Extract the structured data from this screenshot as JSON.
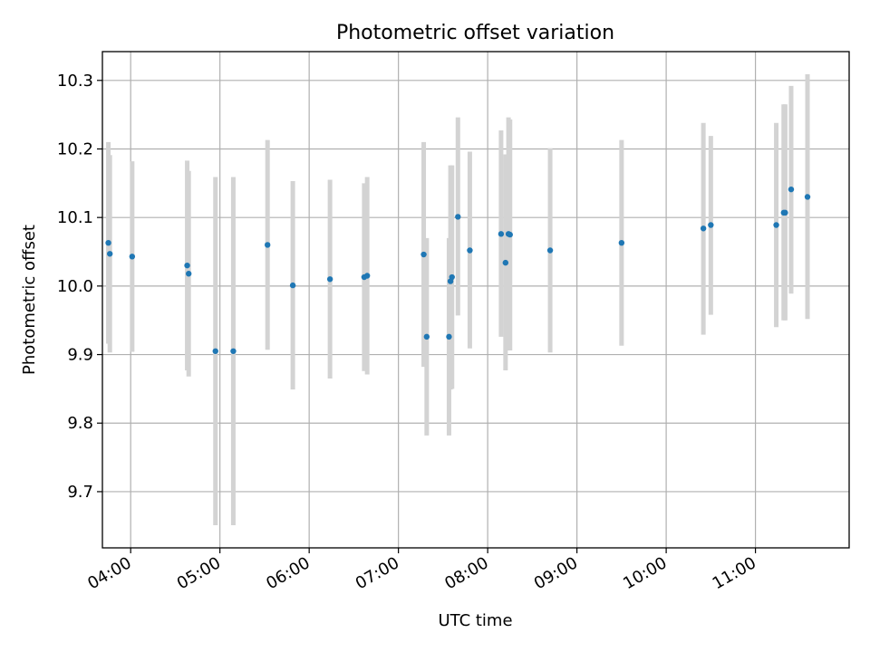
{
  "chart_data": {
    "type": "scatter",
    "title": "Photometric offset variation",
    "xlabel": "UTC time",
    "ylabel": "Photometric offset",
    "x_axis_type": "time",
    "xlim": [
      "03:41",
      "12:03"
    ],
    "ylim": [
      9.618,
      10.342
    ],
    "x_ticks": [
      "04:00",
      "05:00",
      "06:00",
      "07:00",
      "08:00",
      "09:00",
      "10:00",
      "11:00"
    ],
    "y_ticks": [
      9.7,
      9.8,
      9.9,
      10.0,
      10.1,
      10.2,
      10.3
    ],
    "y_tick_labels": [
      "9.7",
      "9.8",
      "9.9",
      "10.0",
      "10.1",
      "10.2",
      "10.3"
    ],
    "grid": true,
    "x_tick_rotation": "30 degrees",
    "marker_color": "#1f77b4",
    "errorbar_color": "#d3d3d3",
    "points": [
      {
        "x": "03:45",
        "y": 10.063,
        "ymin": 9.916,
        "ymax": 10.21
      },
      {
        "x": "03:46",
        "y": 10.047,
        "ymin": 9.903,
        "ymax": 10.191
      },
      {
        "x": "04:01",
        "y": 10.043,
        "ymin": 9.904,
        "ymax": 10.182
      },
      {
        "x": "04:38",
        "y": 10.03,
        "ymin": 9.877,
        "ymax": 10.183
      },
      {
        "x": "04:39",
        "y": 10.018,
        "ymin": 9.868,
        "ymax": 10.168
      },
      {
        "x": "04:57",
        "y": 9.905,
        "ymin": 9.651,
        "ymax": 10.159
      },
      {
        "x": "05:09",
        "y": 9.905,
        "ymin": 9.651,
        "ymax": 10.159
      },
      {
        "x": "05:32",
        "y": 10.06,
        "ymin": 9.907,
        "ymax": 10.213
      },
      {
        "x": "05:49",
        "y": 10.001,
        "ymin": 9.849,
        "ymax": 10.153
      },
      {
        "x": "06:14",
        "y": 10.01,
        "ymin": 9.865,
        "ymax": 10.155
      },
      {
        "x": "06:37",
        "y": 10.013,
        "ymin": 9.876,
        "ymax": 10.15
      },
      {
        "x": "06:39",
        "y": 10.015,
        "ymin": 9.871,
        "ymax": 10.159
      },
      {
        "x": "07:17",
        "y": 10.046,
        "ymin": 9.882,
        "ymax": 10.21
      },
      {
        "x": "07:19",
        "y": 9.926,
        "ymin": 9.782,
        "ymax": 10.07
      },
      {
        "x": "07:34",
        "y": 9.926,
        "ymin": 9.782,
        "ymax": 10.07
      },
      {
        "x": "07:35",
        "y": 10.007,
        "ymin": 9.849,
        "ymax": 10.176
      },
      {
        "x": "07:36",
        "y": 10.013,
        "ymin": 9.85,
        "ymax": 10.176
      },
      {
        "x": "07:40",
        "y": 10.101,
        "ymin": 9.957,
        "ymax": 10.246
      },
      {
        "x": "07:48",
        "y": 10.052,
        "ymin": 9.909,
        "ymax": 10.196
      },
      {
        "x": "08:09",
        "y": 10.076,
        "ymin": 9.926,
        "ymax": 10.227
      },
      {
        "x": "08:12",
        "y": 10.034,
        "ymin": 9.877,
        "ymax": 10.192
      },
      {
        "x": "08:14",
        "y": 10.076,
        "ymin": 9.906,
        "ymax": 10.246
      },
      {
        "x": "08:15",
        "y": 10.075,
        "ymin": 9.906,
        "ymax": 10.243
      },
      {
        "x": "08:42",
        "y": 10.052,
        "ymin": 9.903,
        "ymax": 10.201
      },
      {
        "x": "09:30",
        "y": 10.063,
        "ymin": 9.913,
        "ymax": 10.213
      },
      {
        "x": "10:25",
        "y": 10.084,
        "ymin": 9.929,
        "ymax": 10.238
      },
      {
        "x": "10:30",
        "y": 10.089,
        "ymin": 9.958,
        "ymax": 10.219
      },
      {
        "x": "11:14",
        "y": 10.089,
        "ymin": 9.94,
        "ymax": 10.238
      },
      {
        "x": "11:19",
        "y": 10.107,
        "ymin": 9.95,
        "ymax": 10.265
      },
      {
        "x": "11:20",
        "y": 10.107,
        "ymin": 9.95,
        "ymax": 10.265
      },
      {
        "x": "11:24",
        "y": 10.141,
        "ymin": 9.989,
        "ymax": 10.292
      },
      {
        "x": "11:35",
        "y": 10.13,
        "ymin": 9.952,
        "ymax": 10.309
      }
    ]
  }
}
